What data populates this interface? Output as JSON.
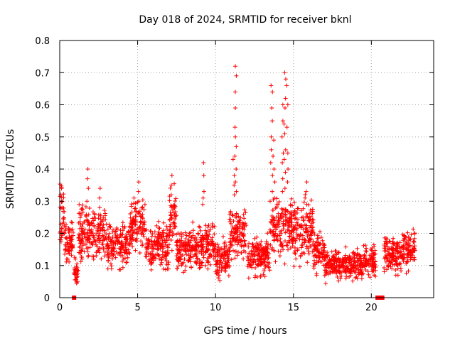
{
  "chart_data": {
    "type": "scatter",
    "title": "Day 018 of 2024, SRMTID for receiver bknl",
    "xlabel": "GPS time / hours",
    "ylabel": "SRMTID / TECUs",
    "xlim": [
      0,
      24
    ],
    "ylim": [
      0,
      0.8
    ],
    "xticks": [
      0,
      5,
      10,
      15,
      20
    ],
    "yticks": [
      0,
      0.1,
      0.2,
      0.3,
      0.4,
      0.5,
      0.6,
      0.7,
      0.8
    ],
    "xtick_labels": [
      "0",
      "5",
      "10",
      "15",
      "20"
    ],
    "ytick_labels": [
      "0",
      "0.1",
      "0.2",
      "0.3",
      "0.4",
      "0.5",
      "0.6",
      "0.7",
      "0.8"
    ],
    "grid": true,
    "color": "#ff0000",
    "marker": "+",
    "series": [
      {
        "name": "SRMTID",
        "profile": [
          {
            "t0": 0.0,
            "t1": 0.3,
            "mean": 0.26,
            "spread": 0.07
          },
          {
            "t0": 0.3,
            "t1": 0.9,
            "mean": 0.17,
            "spread": 0.05
          },
          {
            "t0": 0.9,
            "t1": 1.2,
            "mean": 0.09,
            "spread": 0.04
          },
          {
            "t0": 1.2,
            "t1": 3.0,
            "mean": 0.2,
            "spread": 0.07
          },
          {
            "t0": 3.0,
            "t1": 4.5,
            "mean": 0.16,
            "spread": 0.06
          },
          {
            "t0": 4.5,
            "t1": 5.5,
            "mean": 0.23,
            "spread": 0.07
          },
          {
            "t0": 5.5,
            "t1": 7.0,
            "mean": 0.16,
            "spread": 0.06
          },
          {
            "t0": 7.0,
            "t1": 7.5,
            "mean": 0.25,
            "spread": 0.08
          },
          {
            "t0": 7.5,
            "t1": 9.0,
            "mean": 0.15,
            "spread": 0.06
          },
          {
            "t0": 9.0,
            "t1": 10.0,
            "mean": 0.16,
            "spread": 0.06
          },
          {
            "t0": 10.0,
            "t1": 10.9,
            "mean": 0.12,
            "spread": 0.05
          },
          {
            "t0": 10.9,
            "t1": 12.0,
            "mean": 0.2,
            "spread": 0.07
          },
          {
            "t0": 12.0,
            "t1": 13.5,
            "mean": 0.13,
            "spread": 0.05
          },
          {
            "t0": 13.5,
            "t1": 15.0,
            "mean": 0.22,
            "spread": 0.08
          },
          {
            "t0": 15.0,
            "t1": 16.3,
            "mean": 0.21,
            "spread": 0.08
          },
          {
            "t0": 16.3,
            "t1": 17.0,
            "mean": 0.14,
            "spread": 0.05
          },
          {
            "t0": 17.0,
            "t1": 19.5,
            "mean": 0.1,
            "spread": 0.04
          },
          {
            "t0": 19.5,
            "t1": 20.3,
            "mean": 0.11,
            "spread": 0.04
          },
          {
            "t0": 20.8,
            "t1": 22.0,
            "mean": 0.13,
            "spread": 0.05
          },
          {
            "t0": 22.0,
            "t1": 22.8,
            "mean": 0.15,
            "spread": 0.05
          }
        ],
        "spikes": [
          {
            "x": 9.2,
            "values": [
              0.42,
              0.38,
              0.33,
              0.31,
              0.29
            ]
          },
          {
            "x": 11.3,
            "values": [
              0.72,
              0.69,
              0.64,
              0.59,
              0.53,
              0.5,
              0.47,
              0.44,
              0.4,
              0.36,
              0.33
            ]
          },
          {
            "x": 11.15,
            "values": [
              0.43,
              0.38,
              0.35,
              0.32
            ]
          },
          {
            "x": 13.6,
            "values": [
              0.66,
              0.64,
              0.59,
              0.55,
              0.5,
              0.46,
              0.42,
              0.38,
              0.33
            ]
          },
          {
            "x": 13.75,
            "values": [
              0.49,
              0.44,
              0.4,
              0.36,
              0.31
            ]
          },
          {
            "x": 14.45,
            "values": [
              0.7,
              0.68,
              0.62,
              0.59,
              0.54,
              0.51,
              0.46,
              0.43,
              0.39,
              0.34
            ]
          },
          {
            "x": 14.3,
            "values": [
              0.6,
              0.55,
              0.5,
              0.45,
              0.42,
              0.37,
              0.33
            ]
          },
          {
            "x": 14.6,
            "values": [
              0.66,
              0.6,
              0.53,
              0.45,
              0.4,
              0.36
            ]
          },
          {
            "x": 1.8,
            "values": [
              0.4,
              0.37,
              0.34,
              0.3
            ]
          },
          {
            "x": 5.1,
            "values": [
              0.36,
              0.33,
              0.3
            ]
          },
          {
            "x": 7.2,
            "values": [
              0.38,
              0.35,
              0.32
            ]
          },
          {
            "x": 15.8,
            "values": [
              0.36,
              0.33,
              0.31,
              0.29
            ]
          },
          {
            "x": 2.6,
            "values": [
              0.34,
              0.31,
              0.28
            ]
          },
          {
            "x": 0.1,
            "values": [
              0.34,
              0.32,
              0.3,
              0.28
            ]
          }
        ],
        "zeros": [
          0.92,
          20.4,
          20.55,
          20.7
        ]
      }
    ]
  }
}
